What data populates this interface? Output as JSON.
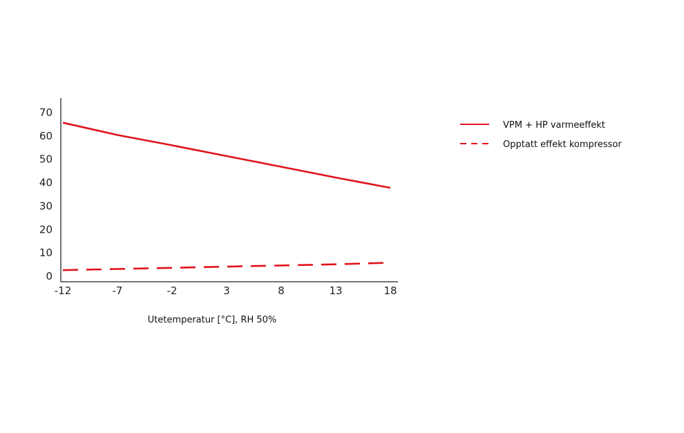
{
  "chart_data": {
    "type": "line",
    "title": "",
    "xlabel": "Utetemperatur [°C], RH 50%",
    "ylabel": "",
    "x": [
      -12,
      -7,
      -2,
      3,
      8,
      13,
      18
    ],
    "xticks": [
      "-12",
      "-7",
      "-2",
      "3",
      "8",
      "13",
      "18"
    ],
    "yticks": [
      "0",
      "10",
      "20",
      "30",
      "40",
      "50",
      "60",
      "70"
    ],
    "ylim": [
      0,
      70
    ],
    "xlim": [
      -12,
      18
    ],
    "grid": false,
    "legend_position": "right",
    "series": [
      {
        "name": "VPM + HP varmeeffekt",
        "style": "solid",
        "color": "#e0121a",
        "values": [
          65.7,
          60.4,
          56.0,
          51.4,
          46.8,
          42.2,
          37.8
        ]
      },
      {
        "name": "Opptatt effekt kompressor",
        "style": "dashed",
        "color": "#e0121a",
        "values": [
          2.6,
          3.1,
          3.6,
          4.1,
          4.6,
          5.1,
          5.8
        ]
      }
    ]
  }
}
